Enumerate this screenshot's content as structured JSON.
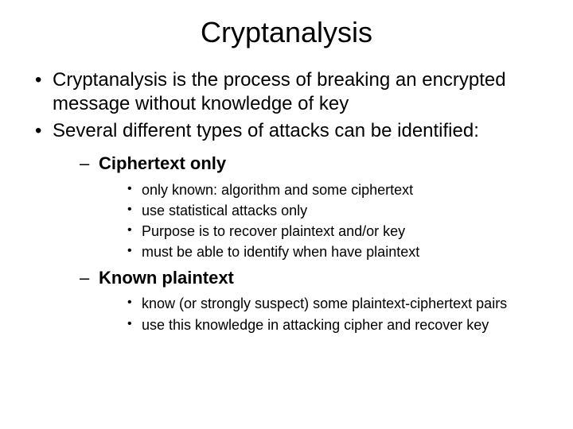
{
  "title": "Cryptanalysis",
  "bullets": [
    {
      "text": "Cryptanalysis is the process of breaking an encrypted message without knowledge of key"
    },
    {
      "text": "Several different types of attacks can be identified:"
    }
  ],
  "subsections": [
    {
      "heading": "Ciphertext only",
      "items": [
        "only known: algorithm and some ciphertext",
        "use statistical attacks only",
        "Purpose is to recover plaintext and/or key",
        "must be able to identify when have plaintext"
      ]
    },
    {
      "heading": "Known plaintext",
      "items": [
        "know (or strongly suspect) some plaintext-ciphertext pairs",
        "use this knowledge in attacking cipher and recover key"
      ]
    }
  ],
  "colors": {
    "background": "#ffffff",
    "text": "#000000"
  },
  "typography": {
    "title_fontsize": 36,
    "level1_fontsize": 24,
    "level2_fontsize": 22,
    "level3_fontsize": 18,
    "font_family": "Arial"
  }
}
